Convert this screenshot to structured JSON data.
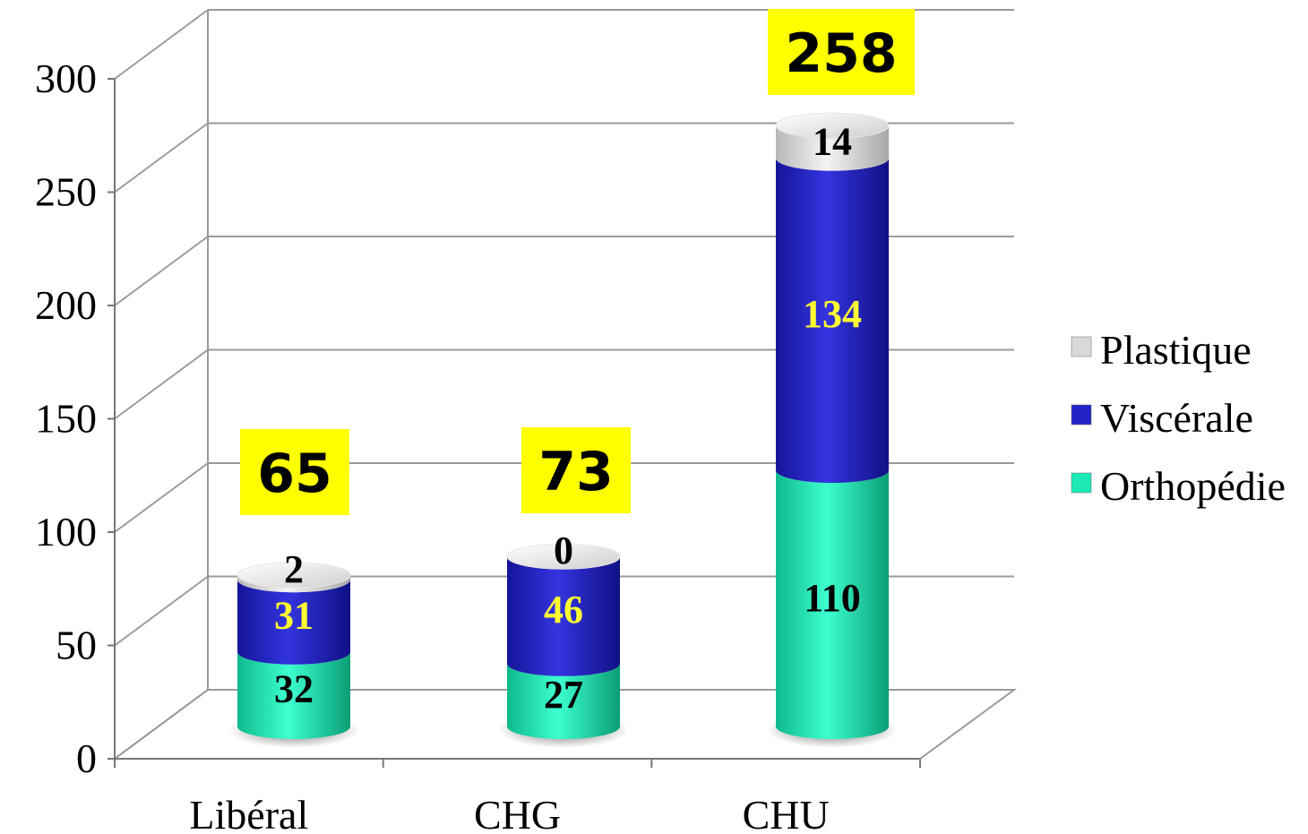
{
  "chart_data": {
    "type": "bar",
    "stacked": true,
    "style": "3d-cylinder",
    "categories": [
      "Libéral",
      "CHG",
      "CHU"
    ],
    "series": [
      {
        "name": "Orthopédie",
        "values": [
          32,
          27,
          110
        ],
        "color": "#1de9b6",
        "label_color": "#000000"
      },
      {
        "name": "Viscérale",
        "values": [
          31,
          46,
          134
        ],
        "color": "#2323c8",
        "label_color": "#ffff33"
      },
      {
        "name": "Plastique",
        "values": [
          2,
          0,
          14
        ],
        "color": "#d9d9d9",
        "label_color": "#000000"
      }
    ],
    "totals": [
      "65",
      "73",
      "258"
    ],
    "total_badge_color": "#ffff00",
    "y_ticks": [
      "0",
      "50",
      "100",
      "150",
      "200",
      "250",
      "300"
    ],
    "ylim": [
      0,
      300
    ],
    "grid": true,
    "legend": "right"
  }
}
